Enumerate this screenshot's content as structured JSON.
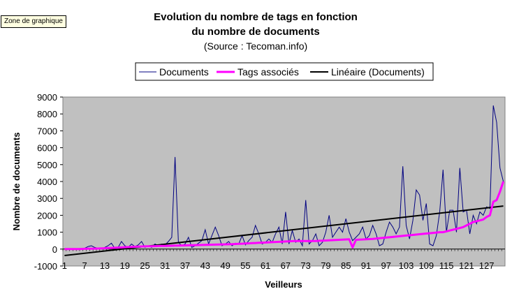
{
  "tooltip": "Zone de graphique",
  "chart_data": {
    "type": "line",
    "title": "Evolution du nombre de tags en fonction du nombre de documents",
    "title_lines": [
      "Evolution du nombre de tags en fonction",
      "du nombre de documents"
    ],
    "subtitle": "(Source : Tecoman.info)",
    "xlabel": "Veilleurs",
    "ylabel": "Nombre de documents",
    "ylim": [
      -1000,
      9000
    ],
    "y_ticks": [
      "9000",
      "8000",
      "7000",
      "6000",
      "5000",
      "4000",
      "3000",
      "2000",
      "1000",
      "0",
      "-1000"
    ],
    "x_count": 132,
    "x_ticks": [
      "1",
      "7",
      "13",
      "19",
      "25",
      "31",
      "37",
      "43",
      "49",
      "55",
      "61",
      "67",
      "73",
      "79",
      "85",
      "91",
      "97",
      "103",
      "109",
      "115",
      "121",
      "127"
    ],
    "grid": false,
    "plot_background": "#c0c0c0",
    "legend_position": "top",
    "colors": {
      "documents": "#000080",
      "tags": "#ff00ff",
      "trend": "#000000"
    },
    "series": [
      {
        "name": "Documents",
        "values": [
          0,
          0,
          0,
          10,
          5,
          0,
          50,
          150,
          200,
          100,
          50,
          0,
          100,
          200,
          350,
          50,
          100,
          450,
          200,
          100,
          300,
          150,
          250,
          450,
          100,
          200,
          100,
          300,
          200,
          300,
          250,
          450,
          700,
          5450,
          400,
          200,
          300,
          700,
          100,
          200,
          350,
          500,
          1150,
          300,
          800,
          1300,
          800,
          200,
          300,
          450,
          200,
          350,
          300,
          800,
          250,
          500,
          700,
          1400,
          900,
          300,
          400,
          600,
          400,
          900,
          1300,
          300,
          2200,
          300,
          1100,
          400,
          600,
          200,
          2900,
          300,
          500,
          900,
          200,
          400,
          1000,
          2000,
          700,
          1000,
          1300,
          1000,
          1800,
          1000,
          500,
          700,
          900,
          1300,
          600,
          800,
          1400,
          900,
          200,
          300,
          1000,
          1600,
          1300,
          900,
          1300,
          4900,
          1400,
          600,
          1700,
          3500,
          3200,
          1700,
          2700,
          300,
          200,
          800,
          2200,
          4700,
          1000,
          2300,
          2300,
          1000,
          4800,
          2200,
          2300,
          900,
          2000,
          1500,
          2200,
          2000,
          2500,
          2400,
          8500,
          7500,
          4800,
          4000
        ],
        "note_shown_by": "line"
      },
      {
        "name": "Tags associés",
        "values": [
          0,
          0,
          0,
          0,
          5,
          10,
          15,
          20,
          25,
          30,
          35,
          40,
          50,
          60,
          70,
          80,
          90,
          100,
          110,
          120,
          130,
          140,
          150,
          155,
          160,
          165,
          170,
          175,
          180,
          185,
          190,
          195,
          200,
          205,
          210,
          215,
          220,
          225,
          230,
          235,
          240,
          245,
          250,
          255,
          260,
          265,
          270,
          275,
          280,
          285,
          290,
          300,
          310,
          320,
          330,
          340,
          350,
          360,
          370,
          380,
          390,
          400,
          410,
          420,
          430,
          440,
          450,
          460,
          470,
          480,
          480,
          480,
          480,
          480,
          480,
          480,
          490,
          500,
          510,
          520,
          530,
          540,
          550,
          560,
          570,
          580,
          100,
          550,
          560,
          570,
          580,
          590,
          600,
          620,
          640,
          660,
          680,
          700,
          720,
          740,
          760,
          780,
          800,
          820,
          840,
          860,
          880,
          900,
          920,
          940,
          960,
          980,
          1000,
          1000,
          1050,
          1100,
          1150,
          1200,
          1250,
          1300,
          1400,
          1500,
          1600,
          1650,
          1700,
          1750,
          1900,
          2000,
          2800,
          2900,
          3400,
          4000
        ]
      },
      {
        "name": "Linéaire (Documents)",
        "values_at": {
          "1": -380,
          "132": 2550
        }
      }
    ]
  }
}
